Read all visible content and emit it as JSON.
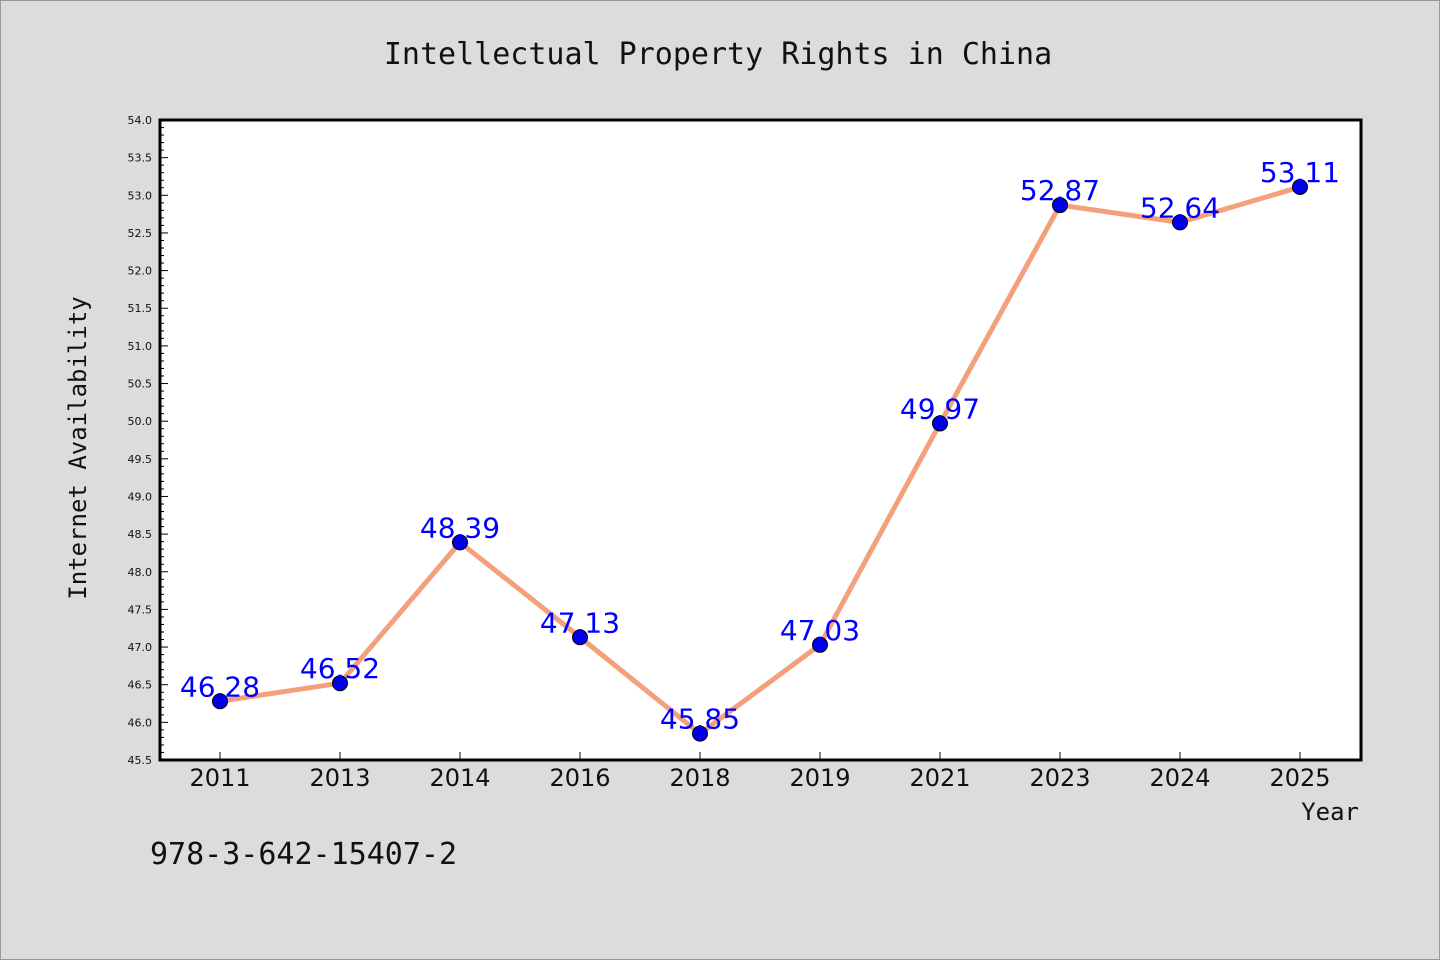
{
  "chart_data": {
    "type": "line",
    "title": "Intellectual Property Rights in China",
    "xlabel": "Year",
    "ylabel": "Internet Availability",
    "categories": [
      "2011",
      "2013",
      "2014",
      "2016",
      "2018",
      "2019",
      "2021",
      "2023",
      "2024",
      "2025"
    ],
    "values": [
      46.28,
      46.52,
      48.39,
      47.13,
      45.85,
      47.03,
      49.97,
      52.87,
      52.64,
      53.11
    ],
    "data_labels": [
      "46.28",
      "46.52",
      "48.39",
      "47.13",
      "45.85",
      "47.03",
      "49.97",
      "52.87",
      "52.64",
      "53.11"
    ],
    "ylim": [
      45.5,
      54.0
    ],
    "yticks": [
      "45.5",
      "46.0",
      "46.5",
      "47.0",
      "47.5",
      "48.0",
      "48.5",
      "49.0",
      "49.5",
      "50.0",
      "50.5",
      "51.0",
      "51.5",
      "52.0",
      "52.5",
      "53.0",
      "53.5",
      "54.0"
    ],
    "grid": false,
    "line_color": "#f4a07c",
    "marker_color": "#0000ee",
    "label_color": "#0000ff"
  },
  "footer_text": "978-3-642-15407-2"
}
